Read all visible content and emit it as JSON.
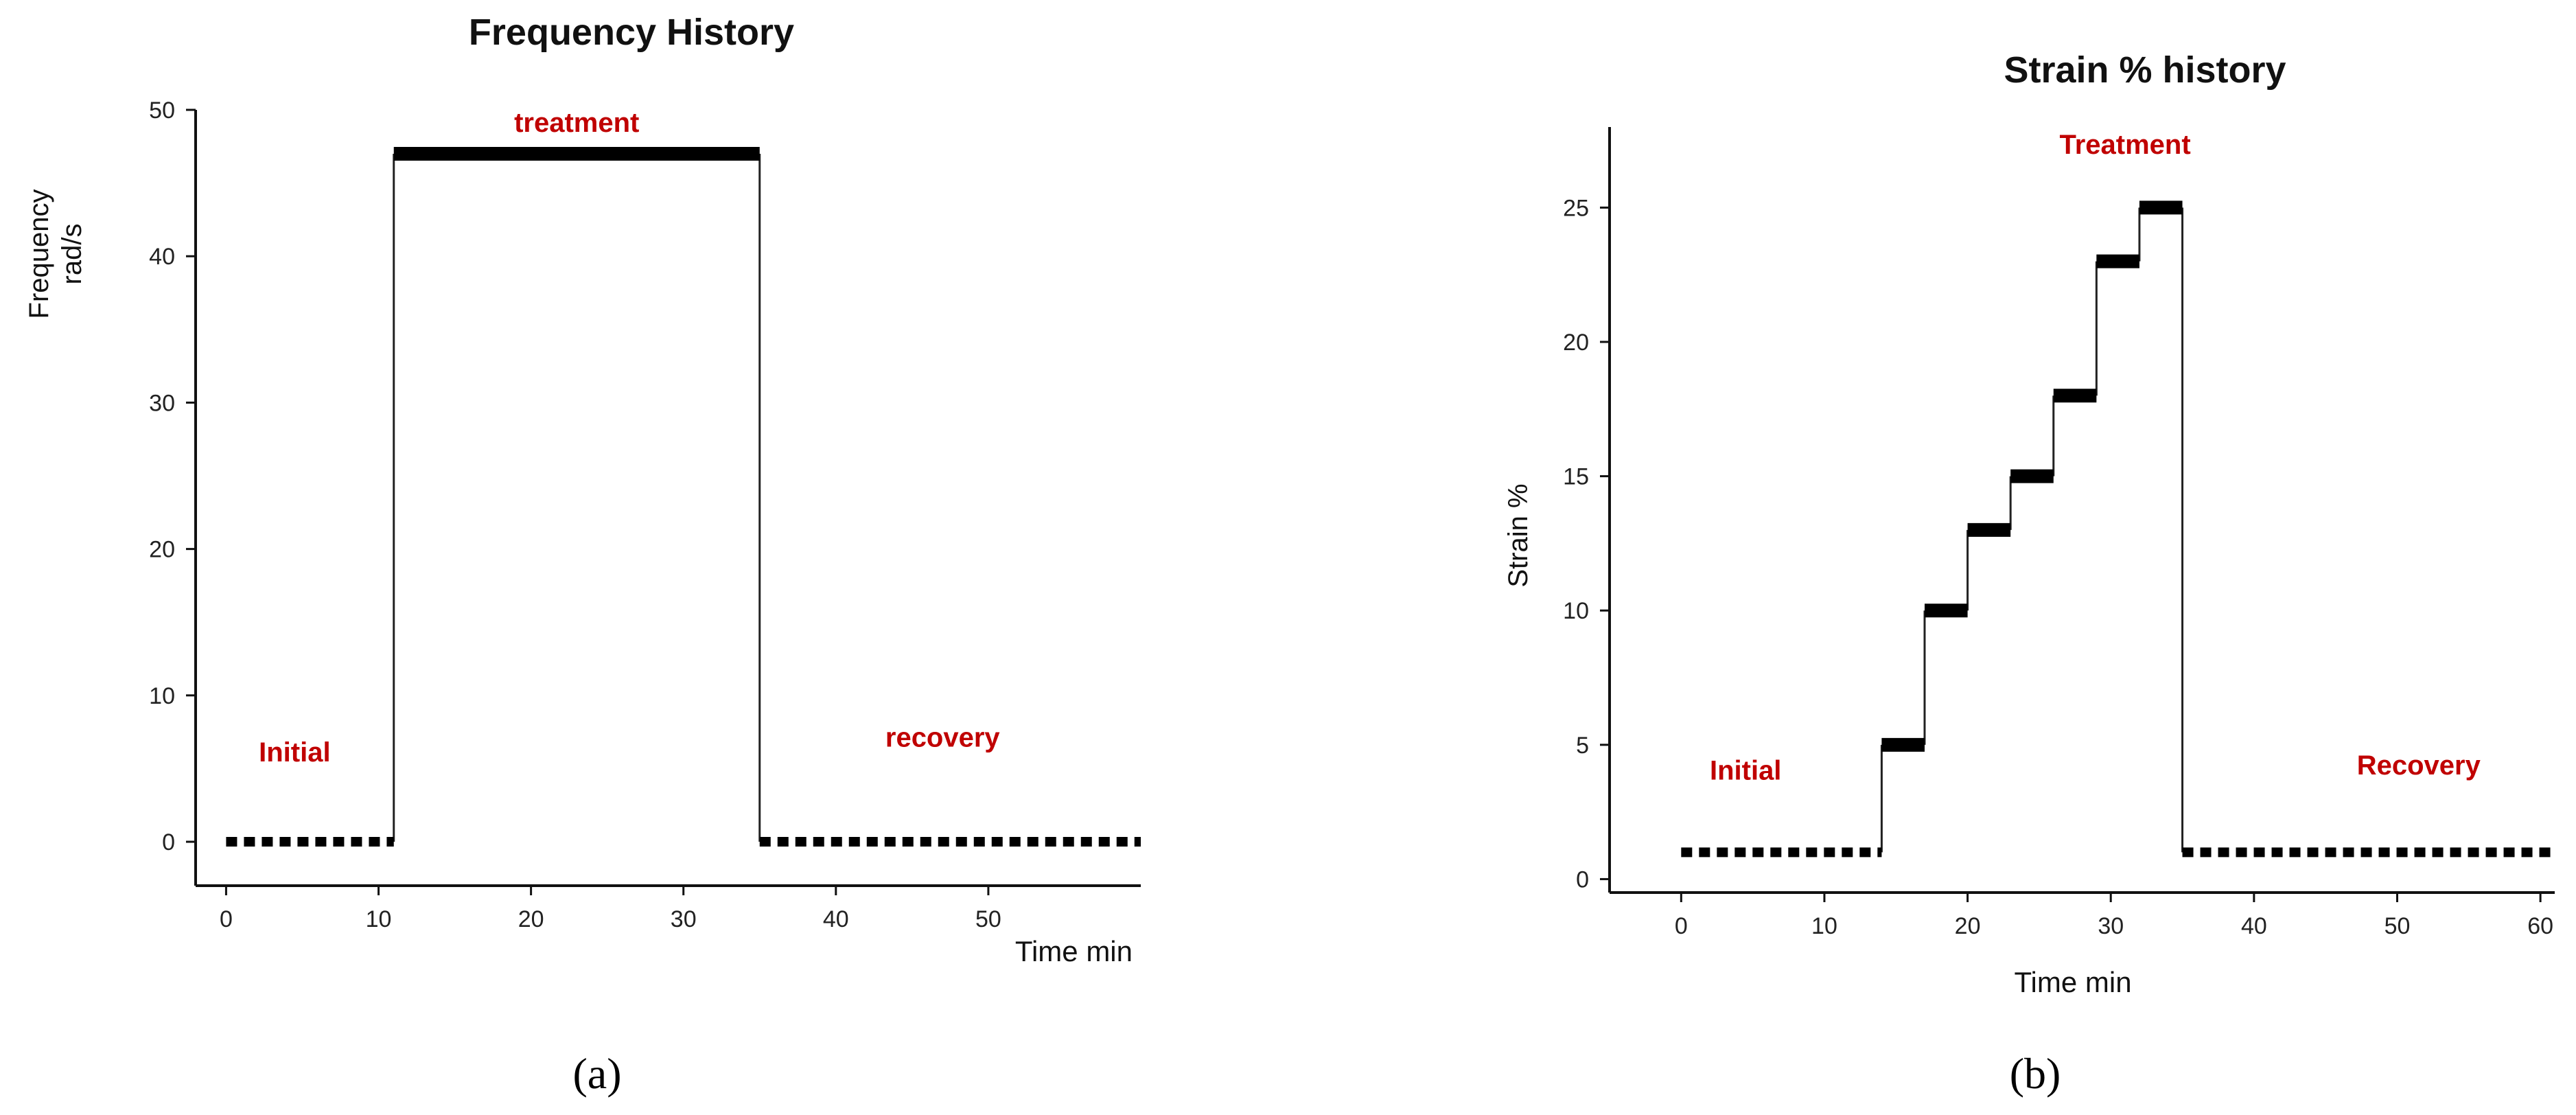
{
  "chart_data": [
    {
      "type": "line",
      "title": "Frequency History",
      "xlabel": "Time min",
      "ylabel_lines": [
        "Frequency",
        "rad/s"
      ],
      "xlim": [
        -2,
        60
      ],
      "ylim": [
        -3,
        50
      ],
      "xticks": [
        0,
        10,
        20,
        30,
        40,
        50
      ],
      "yticks": [
        0,
        10,
        20,
        30,
        40,
        50
      ],
      "phases": [
        {
          "label": "Initial",
          "x": 4.5,
          "y": 5.5
        },
        {
          "label": "treatment",
          "x": 23,
          "y": 48.5
        },
        {
          "label": "recovery",
          "x": 47,
          "y": 6.5
        }
      ],
      "series": [
        {
          "segments": [
            {
              "x": [
                0,
                11
              ],
              "y": [
                0,
                0
              ],
              "style": "dotted"
            },
            {
              "x": [
                11,
                35
              ],
              "y": [
                47,
                47
              ],
              "style": "thick"
            },
            {
              "x": [
                35,
                60
              ],
              "y": [
                0,
                0
              ],
              "style": "dotted"
            }
          ],
          "transitions": [
            {
              "x": 11,
              "y": [
                0,
                47
              ]
            },
            {
              "x": 35,
              "y": [
                47,
                0
              ]
            }
          ]
        }
      ],
      "caption": "(a)"
    },
    {
      "type": "line",
      "title": "Strain % history",
      "xlabel": "Time min",
      "ylabel": "Strain %",
      "xlim": [
        -5,
        61
      ],
      "ylim": [
        -0.5,
        28
      ],
      "xticks": [
        0,
        10,
        20,
        30,
        40,
        50,
        60
      ],
      "yticks": [
        0,
        5,
        10,
        15,
        20,
        25
      ],
      "phases": [
        {
          "label": "Initial",
          "x": 4.5,
          "y": 3.7
        },
        {
          "label": "Treatment",
          "x": 31,
          "y": 27
        },
        {
          "label": "Recovery",
          "x": 51.5,
          "y": 3.9
        }
      ],
      "series": [
        {
          "segments": [
            {
              "x": [
                0,
                14
              ],
              "y": [
                1,
                1
              ],
              "style": "dotted"
            },
            {
              "x": [
                14,
                17
              ],
              "y": [
                5,
                5
              ],
              "style": "thick"
            },
            {
              "x": [
                17,
                20
              ],
              "y": [
                10,
                10
              ],
              "style": "thick"
            },
            {
              "x": [
                20,
                23
              ],
              "y": [
                13,
                13
              ],
              "style": "thick"
            },
            {
              "x": [
                23,
                26
              ],
              "y": [
                15,
                15
              ],
              "style": "thick"
            },
            {
              "x": [
                26,
                29
              ],
              "y": [
                18,
                18
              ],
              "style": "thick"
            },
            {
              "x": [
                29,
                32
              ],
              "y": [
                23,
                23
              ],
              "style": "thick"
            },
            {
              "x": [
                32,
                35
              ],
              "y": [
                25,
                25
              ],
              "style": "thick"
            },
            {
              "x": [
                35,
                61
              ],
              "y": [
                1,
                1
              ],
              "style": "dotted"
            }
          ],
          "transitions": [
            {
              "x": 14,
              "y": [
                1,
                5
              ]
            },
            {
              "x": 17,
              "y": [
                5,
                10
              ]
            },
            {
              "x": 20,
              "y": [
                10,
                13
              ]
            },
            {
              "x": 23,
              "y": [
                13,
                15
              ]
            },
            {
              "x": 26,
              "y": [
                15,
                18
              ]
            },
            {
              "x": 29,
              "y": [
                18,
                23
              ]
            },
            {
              "x": 32,
              "y": [
                23,
                25
              ]
            },
            {
              "x": 35,
              "y": [
                25,
                1
              ]
            }
          ]
        }
      ],
      "caption": "(b)"
    }
  ]
}
